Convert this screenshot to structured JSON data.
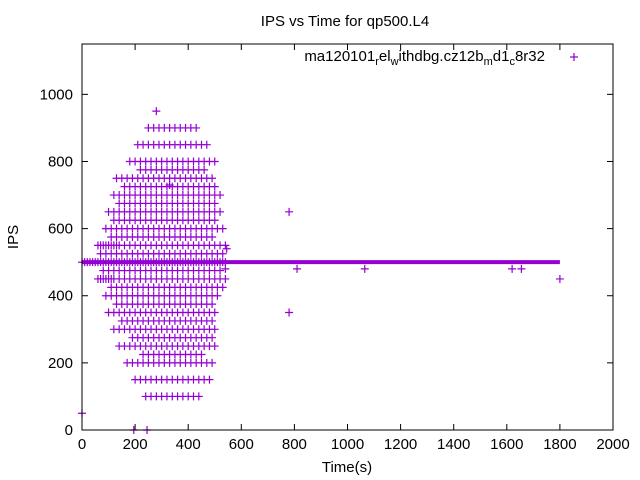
{
  "chart_data": {
    "type": "scatter",
    "title": "IPS vs Time for qp500.L4",
    "xlabel": "Time(s)",
    "ylabel": "IPS",
    "xlim": [
      0,
      2000
    ],
    "ylim": [
      0,
      1150
    ],
    "xticks": [
      0,
      200,
      400,
      600,
      800,
      1000,
      1200,
      1400,
      1600,
      1800,
      2000
    ],
    "yticks": [
      0,
      200,
      400,
      600,
      800,
      1000
    ],
    "marker": "plus",
    "color": "#9400d3",
    "legend_position": "top-right",
    "legend_label_base": "ma120101",
    "legend_label_parts": [
      {
        "text": "ma120101",
        "sub": false
      },
      {
        "text": "r",
        "sub": true
      },
      {
        "text": "el",
        "sub": false
      },
      {
        "text": "w",
        "sub": true
      },
      {
        "text": "ithdbg.cz12b",
        "sub": false
      },
      {
        "text": "m",
        "sub": true
      },
      {
        "text": "d1",
        "sub": false
      },
      {
        "text": "c",
        "sub": true
      },
      {
        "text": "8r32",
        "sub": false
      }
    ],
    "series": [
      {
        "name": "ma120101_rel_withdbg.cz12b_md1_c8r32",
        "x": [
          0,
          10,
          20,
          30,
          40,
          50,
          60,
          70,
          80,
          90,
          100,
          110,
          120,
          130,
          140,
          150,
          160,
          170,
          180,
          190,
          200,
          210,
          220,
          230,
          240,
          250,
          260,
          270,
          280,
          290,
          300,
          310,
          320,
          330,
          340,
          350,
          360,
          370,
          380,
          390,
          400,
          410,
          420,
          430,
          440,
          450,
          460,
          470,
          480,
          490,
          500,
          510,
          520,
          530,
          540,
          60,
          70,
          80,
          90,
          100,
          110,
          120,
          130,
          140,
          160,
          180,
          200,
          220,
          240,
          260,
          280,
          300,
          320,
          340,
          360,
          380,
          400,
          420,
          440,
          460,
          480,
          500,
          520,
          540,
          60,
          70,
          80,
          90,
          100,
          110,
          120,
          140,
          160,
          180,
          200,
          220,
          240,
          260,
          280,
          300,
          320,
          340,
          360,
          380,
          400,
          420,
          440,
          460,
          480,
          500,
          520,
          540,
          70,
          90,
          110,
          130,
          150,
          170,
          190,
          210,
          230,
          250,
          270,
          290,
          310,
          330,
          350,
          370,
          390,
          410,
          430,
          450,
          470,
          490,
          510,
          530,
          80,
          100,
          120,
          140,
          160,
          180,
          200,
          220,
          240,
          260,
          280,
          300,
          320,
          340,
          360,
          380,
          400,
          420,
          440,
          460,
          480,
          500,
          520,
          90,
          110,
          130,
          150,
          170,
          190,
          210,
          230,
          250,
          270,
          290,
          310,
          330,
          350,
          370,
          390,
          410,
          430,
          450,
          470,
          490,
          510,
          530,
          90,
          110,
          130,
          150,
          170,
          190,
          210,
          230,
          250,
          270,
          290,
          310,
          330,
          350,
          370,
          390,
          410,
          430,
          450,
          470,
          490,
          510,
          100,
          120,
          140,
          160,
          180,
          200,
          220,
          240,
          260,
          280,
          300,
          320,
          340,
          360,
          380,
          400,
          420,
          440,
          460,
          480,
          500,
          520,
          100,
          120,
          140,
          160,
          180,
          200,
          220,
          240,
          260,
          280,
          300,
          320,
          340,
          360,
          380,
          400,
          420,
          440,
          460,
          480,
          500,
          110,
          130,
          150,
          170,
          190,
          210,
          230,
          250,
          270,
          290,
          310,
          330,
          350,
          370,
          390,
          410,
          430,
          450,
          470,
          490,
          510,
          530,
          110,
          130,
          150,
          170,
          190,
          210,
          230,
          250,
          270,
          290,
          310,
          330,
          350,
          370,
          390,
          410,
          430,
          450,
          470,
          490,
          120,
          140,
          160,
          180,
          200,
          220,
          240,
          260,
          280,
          300,
          320,
          340,
          360,
          380,
          400,
          420,
          440,
          460,
          480,
          500,
          520,
          120,
          140,
          160,
          180,
          200,
          220,
          240,
          260,
          280,
          300,
          320,
          340,
          360,
          380,
          400,
          420,
          440,
          460,
          480,
          500,
          120,
          140,
          160,
          180,
          200,
          220,
          240,
          260,
          280,
          300,
          320,
          340,
          360,
          380,
          400,
          420,
          440,
          460,
          480,
          500,
          130,
          150,
          170,
          190,
          210,
          230,
          250,
          270,
          290,
          310,
          330,
          350,
          370,
          390,
          410,
          430,
          450,
          470,
          490,
          130,
          150,
          170,
          190,
          210,
          230,
          250,
          270,
          290,
          310,
          330,
          350,
          370,
          390,
          410,
          430,
          450,
          470,
          490,
          140,
          160,
          180,
          200,
          220,
          240,
          260,
          280,
          300,
          320,
          340,
          360,
          380,
          400,
          420,
          440,
          460,
          480,
          500,
          140,
          160,
          180,
          200,
          220,
          240,
          260,
          280,
          300,
          320,
          340,
          360,
          380,
          400,
          420,
          440,
          460,
          480,
          500,
          150,
          170,
          190,
          210,
          230,
          250,
          270,
          290,
          310,
          330,
          350,
          370,
          390,
          410,
          430,
          450,
          470,
          490,
          160,
          180,
          200,
          220,
          240,
          260,
          280,
          300,
          320,
          340,
          360,
          380,
          400,
          420,
          440,
          460,
          480,
          500,
          170,
          190,
          210,
          230,
          250,
          270,
          290,
          310,
          330,
          350,
          370,
          390,
          410,
          430,
          450,
          470,
          490,
          180,
          200,
          220,
          240,
          260,
          280,
          300,
          320,
          340,
          360,
          380,
          400,
          420,
          440,
          460,
          480,
          500,
          190,
          210,
          230,
          250,
          270,
          290,
          310,
          330,
          350,
          370,
          390,
          410,
          430,
          450,
          470,
          490,
          200,
          220,
          240,
          260,
          280,
          300,
          320,
          340,
          360,
          380,
          400,
          420,
          440,
          460,
          480,
          210,
          230,
          250,
          270,
          290,
          310,
          330,
          350,
          370,
          390,
          410,
          430,
          450,
          470,
          220,
          240,
          260,
          280,
          300,
          320,
          340,
          360,
          380,
          400,
          420,
          440,
          460,
          230,
          250,
          270,
          290,
          310,
          330,
          350,
          370,
          390,
          410,
          430,
          450,
          240,
          260,
          280,
          300,
          320,
          340,
          360,
          380,
          400,
          420,
          440,
          250,
          270,
          290,
          310,
          330,
          350,
          370,
          390,
          410,
          430,
          0,
          195,
          245,
          280,
          780,
          810,
          1065,
          1620,
          1655,
          1800,
          780,
          330,
          540,
          545
        ],
        "y": [
          500,
          500,
          500,
          500,
          500,
          500,
          500,
          500,
          500,
          500,
          500,
          500,
          500,
          500,
          500,
          500,
          500,
          500,
          500,
          500,
          500,
          500,
          500,
          500,
          500,
          500,
          500,
          500,
          500,
          500,
          500,
          500,
          500,
          500,
          500,
          500,
          500,
          500,
          500,
          500,
          500,
          500,
          500,
          500,
          500,
          500,
          500,
          500,
          500,
          500,
          500,
          500,
          500,
          500,
          500,
          550,
          550,
          550,
          550,
          550,
          550,
          550,
          550,
          550,
          550,
          550,
          550,
          550,
          550,
          550,
          550,
          550,
          550,
          550,
          550,
          550,
          550,
          550,
          550,
          550,
          550,
          550,
          550,
          550,
          450,
          450,
          450,
          450,
          450,
          450,
          450,
          450,
          450,
          450,
          450,
          450,
          450,
          450,
          450,
          450,
          450,
          450,
          450,
          450,
          450,
          450,
          450,
          450,
          450,
          450,
          450,
          450,
          525,
          525,
          525,
          525,
          525,
          525,
          525,
          525,
          525,
          525,
          525,
          525,
          525,
          525,
          525,
          525,
          525,
          525,
          525,
          525,
          525,
          525,
          525,
          525,
          475,
          475,
          475,
          475,
          475,
          475,
          475,
          475,
          475,
          475,
          475,
          475,
          475,
          475,
          475,
          475,
          475,
          475,
          475,
          475,
          475,
          475,
          475,
          600,
          600,
          600,
          600,
          600,
          600,
          600,
          600,
          600,
          600,
          600,
          600,
          600,
          600,
          600,
          600,
          600,
          600,
          600,
          600,
          600,
          600,
          600,
          400,
          400,
          400,
          400,
          400,
          400,
          400,
          400,
          400,
          400,
          400,
          400,
          400,
          400,
          400,
          400,
          400,
          400,
          400,
          400,
          400,
          400,
          650,
          650,
          650,
          650,
          650,
          650,
          650,
          650,
          650,
          650,
          650,
          650,
          650,
          650,
          650,
          650,
          650,
          650,
          650,
          650,
          650,
          650,
          350,
          350,
          350,
          350,
          350,
          350,
          350,
          350,
          350,
          350,
          350,
          350,
          350,
          350,
          350,
          350,
          350,
          350,
          350,
          350,
          350,
          425,
          425,
          425,
          425,
          425,
          425,
          425,
          425,
          425,
          425,
          425,
          425,
          425,
          425,
          425,
          425,
          425,
          425,
          425,
          425,
          425,
          425,
          575,
          575,
          575,
          575,
          575,
          575,
          575,
          575,
          575,
          575,
          575,
          575,
          575,
          575,
          575,
          575,
          575,
          575,
          575,
          575,
          700,
          700,
          700,
          700,
          700,
          700,
          700,
          700,
          700,
          700,
          700,
          700,
          700,
          700,
          700,
          700,
          700,
          700,
          700,
          700,
          700,
          300,
          300,
          300,
          300,
          300,
          300,
          300,
          300,
          300,
          300,
          300,
          300,
          300,
          300,
          300,
          300,
          300,
          300,
          300,
          300,
          625,
          625,
          625,
          625,
          625,
          625,
          625,
          625,
          625,
          625,
          625,
          625,
          625,
          625,
          625,
          625,
          625,
          625,
          625,
          625,
          750,
          750,
          750,
          750,
          750,
          750,
          750,
          750,
          750,
          750,
          750,
          750,
          750,
          750,
          750,
          750,
          750,
          750,
          750,
          375,
          375,
          375,
          375,
          375,
          375,
          375,
          375,
          375,
          375,
          375,
          375,
          375,
          375,
          375,
          375,
          375,
          375,
          375,
          250,
          250,
          250,
          250,
          250,
          250,
          250,
          250,
          250,
          250,
          250,
          250,
          250,
          250,
          250,
          250,
          250,
          250,
          250,
          675,
          675,
          675,
          675,
          675,
          675,
          675,
          675,
          675,
          675,
          675,
          675,
          675,
          675,
          675,
          675,
          675,
          675,
          675,
          325,
          325,
          325,
          325,
          325,
          325,
          325,
          325,
          325,
          325,
          325,
          325,
          325,
          325,
          325,
          325,
          325,
          325,
          725,
          725,
          725,
          725,
          725,
          725,
          725,
          725,
          725,
          725,
          725,
          725,
          725,
          725,
          725,
          725,
          725,
          725,
          200,
          200,
          200,
          200,
          200,
          200,
          200,
          200,
          200,
          200,
          200,
          200,
          200,
          200,
          200,
          200,
          200,
          800,
          800,
          800,
          800,
          800,
          800,
          800,
          800,
          800,
          800,
          800,
          800,
          800,
          800,
          800,
          800,
          800,
          275,
          275,
          275,
          275,
          275,
          275,
          275,
          275,
          275,
          275,
          275,
          275,
          275,
          275,
          275,
          275,
          150,
          150,
          150,
          150,
          150,
          150,
          150,
          150,
          150,
          150,
          150,
          150,
          150,
          150,
          150,
          850,
          850,
          850,
          850,
          850,
          850,
          850,
          850,
          850,
          850,
          850,
          850,
          850,
          850,
          775,
          775,
          775,
          775,
          775,
          775,
          775,
          775,
          775,
          775,
          775,
          775,
          775,
          225,
          225,
          225,
          225,
          225,
          225,
          225,
          225,
          225,
          225,
          225,
          225,
          100,
          100,
          100,
          100,
          100,
          100,
          100,
          100,
          100,
          100,
          100,
          900,
          900,
          900,
          900,
          900,
          900,
          900,
          900,
          900,
          900,
          50,
          0,
          0,
          950,
          650,
          480,
          480,
          480,
          480,
          450,
          350,
          730,
          480,
          540
        ]
      }
    ]
  }
}
